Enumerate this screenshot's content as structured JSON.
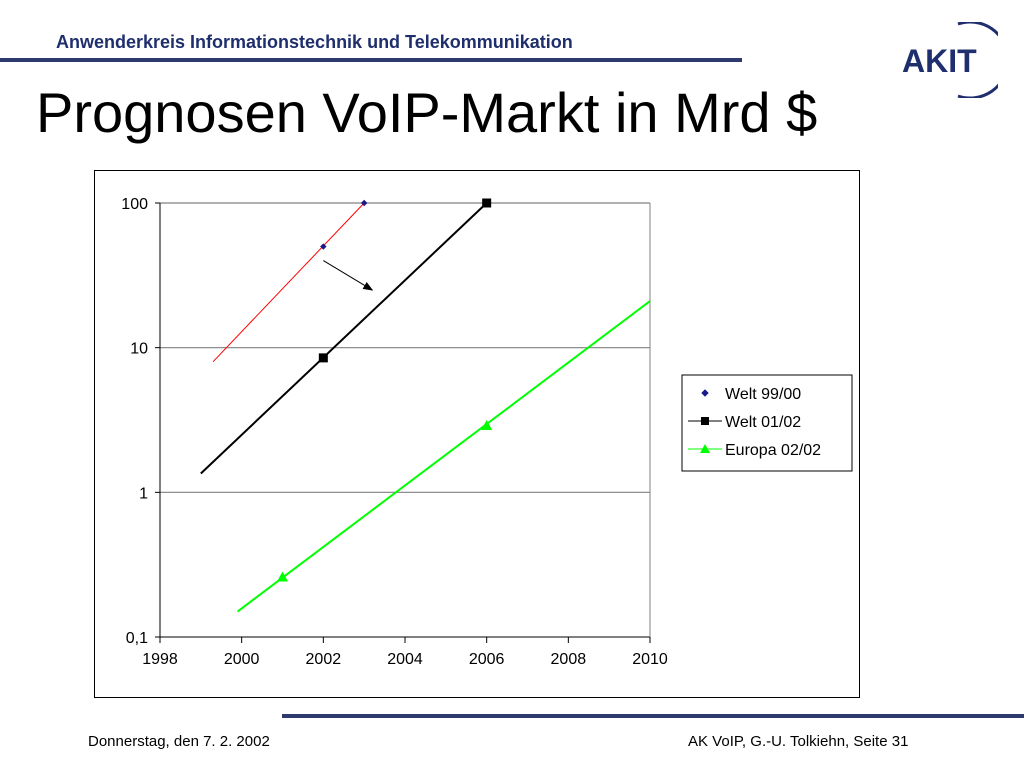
{
  "header": {
    "org_name": "Anwenderkreis  Informationstechnik und Telekommunikation",
    "logo_text": "AKIT",
    "title": "Prognosen VoIP-Markt in Mrd $"
  },
  "footer": {
    "date": "Donnerstag, den 7. 2. 2002",
    "source": "AK VoIP, G.-U. Tolkiehn, Seite 31"
  },
  "colors": {
    "brand": "#1f2f6e",
    "welt9900_marker": "#1a1a8c",
    "welt9900_line": "#ff0000",
    "welt0102": "#000000",
    "europa0202": "#00ff00"
  },
  "chart_data": {
    "type": "line",
    "title": "",
    "xlabel": "",
    "ylabel": "",
    "y_scale": "log",
    "xlim": [
      1998,
      2010
    ],
    "ylim": [
      0.1,
      100
    ],
    "x_ticks": [
      "1998",
      "2000",
      "2002",
      "2004",
      "2006",
      "2008",
      "2010"
    ],
    "y_ticks": [
      "0,1",
      "1",
      "10",
      "100"
    ],
    "grid": "horizontal",
    "legend_position": "right",
    "series": [
      {
        "name": "Welt 99/00",
        "marker": "diamond",
        "points": [
          {
            "x": 2002,
            "y": 50
          },
          {
            "x": 2003,
            "y": 100
          }
        ],
        "trend": [
          {
            "x": 1999.3,
            "y": 8
          },
          {
            "x": 2003,
            "y": 100
          }
        ]
      },
      {
        "name": "Welt 01/02",
        "marker": "square",
        "points": [
          {
            "x": 2002,
            "y": 8.5
          },
          {
            "x": 2006,
            "y": 100
          }
        ],
        "trend": [
          {
            "x": 1999,
            "y": 1.35
          },
          {
            "x": 2006,
            "y": 100
          }
        ]
      },
      {
        "name": "Europa 02/02",
        "marker": "triangle",
        "points": [
          {
            "x": 2001,
            "y": 0.26
          },
          {
            "x": 2006,
            "y": 2.9
          }
        ],
        "trend": [
          {
            "x": 1999.9,
            "y": 0.15
          },
          {
            "x": 2010,
            "y": 21
          }
        ]
      }
    ],
    "annotations": [
      {
        "type": "arrow",
        "from": {
          "x": 2002,
          "y": 40
        },
        "to": {
          "x": 2003.2,
          "y": 25
        }
      }
    ]
  }
}
